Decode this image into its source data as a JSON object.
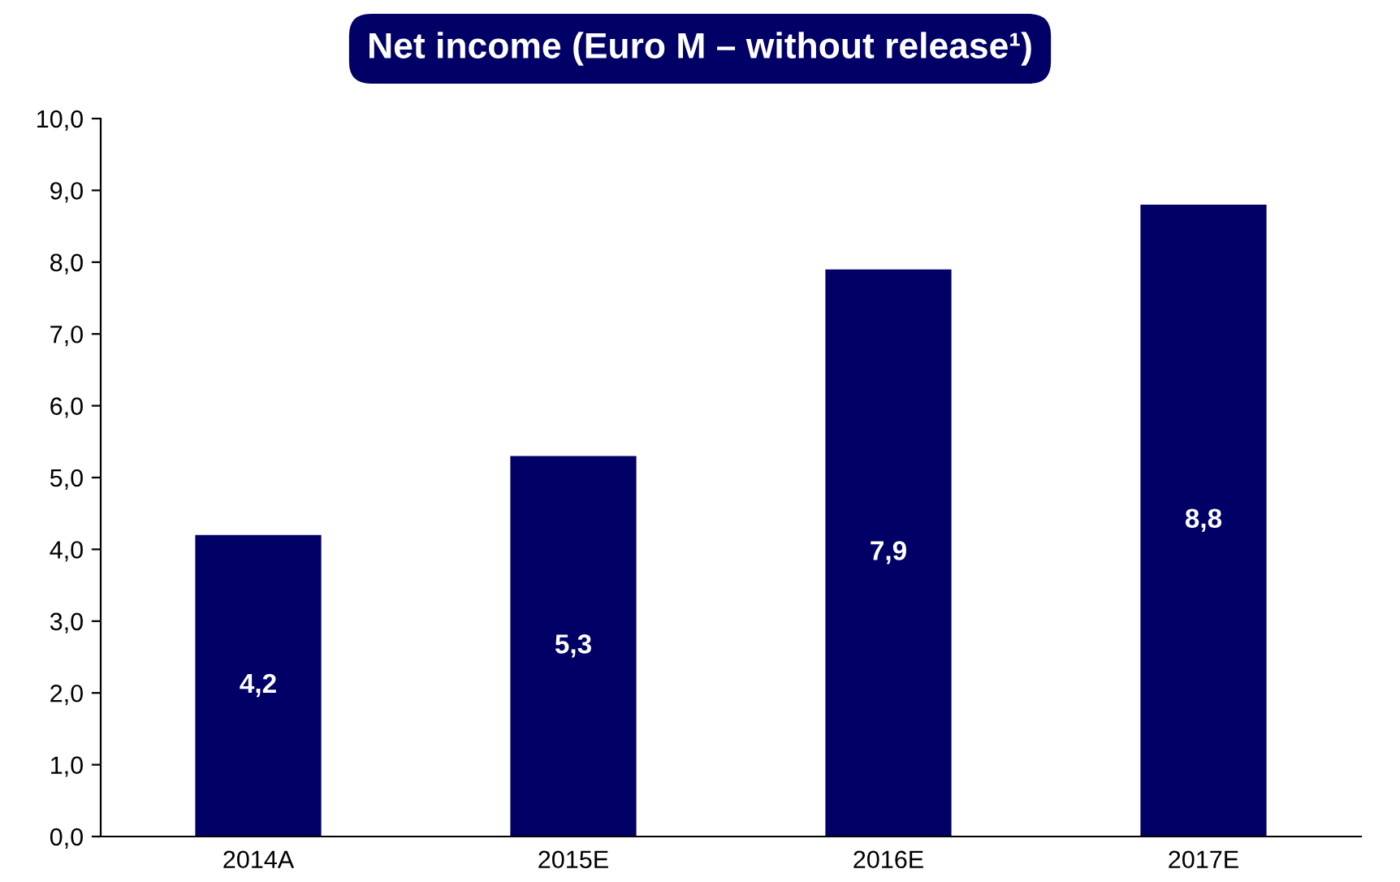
{
  "chart_data": {
    "type": "bar",
    "title": "Net income (Euro M – without release¹)",
    "categories": [
      "2014A",
      "2015E",
      "2016E",
      "2017E"
    ],
    "values": [
      4.2,
      5.3,
      7.9,
      8.8
    ],
    "value_labels": [
      "4,2",
      "5,3",
      "7,9",
      "8,8"
    ],
    "color": "#000066",
    "ylim": [
      0,
      10
    ],
    "yticks": [
      {
        "value": 0,
        "label": "0,0"
      },
      {
        "value": 1,
        "label": "1,0"
      },
      {
        "value": 2,
        "label": "2,0"
      },
      {
        "value": 3,
        "label": "3,0"
      },
      {
        "value": 4,
        "label": "4,0"
      },
      {
        "value": 5,
        "label": "5,0"
      },
      {
        "value": 6,
        "label": "6,0"
      },
      {
        "value": 7,
        "label": "7,0"
      },
      {
        "value": 8,
        "label": "8,0"
      },
      {
        "value": 9,
        "label": "9,0"
      },
      {
        "value": 10,
        "label": "10,0"
      }
    ],
    "grid": false
  }
}
